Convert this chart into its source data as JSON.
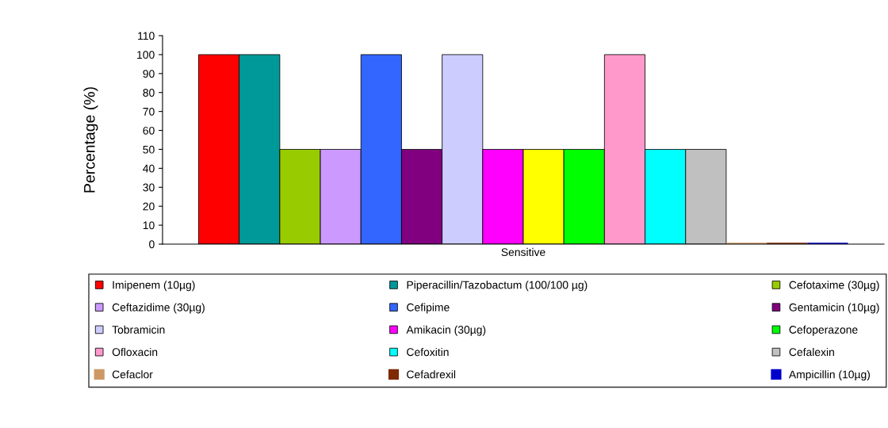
{
  "chart_data": {
    "type": "bar",
    "categories": [
      "Sensitive"
    ],
    "ylabel": "Percentage (%)",
    "ylim": [
      0,
      110
    ],
    "yticks": [
      0,
      10,
      20,
      30,
      40,
      50,
      60,
      70,
      80,
      90,
      100,
      110
    ],
    "grid": false,
    "legend": "bottom",
    "series": [
      {
        "name": "Imipenem (10µg)",
        "color": "#ff0000",
        "values": [
          100
        ]
      },
      {
        "name": "Piperacillin/Tazobactum (100/100 µg)",
        "color": "#009999",
        "values": [
          100
        ]
      },
      {
        "name": "Cefotaxime (30µg)",
        "color": "#99cc00",
        "values": [
          50
        ]
      },
      {
        "name": "Ceftazidime (30µg)",
        "color": "#cc99ff",
        "values": [
          50
        ]
      },
      {
        "name": "Cefipime",
        "color": "#3366ff",
        "values": [
          100
        ]
      },
      {
        "name": "Gentamicin (10µg)",
        "color": "#800080",
        "values": [
          50
        ]
      },
      {
        "name": "Tobramicin",
        "color": "#ccccff",
        "values": [
          100
        ]
      },
      {
        "name": "Amikacin (30µg)",
        "color": "#ff00ff",
        "values": [
          50
        ]
      },
      {
        "color": "#ffff00",
        "values": [
          50
        ]
      },
      {
        "name": "Cefoperazone",
        "color": "#00ff00",
        "values": [
          50
        ]
      },
      {
        "name": "Ofloxacin",
        "color": "#ff99cc",
        "values": [
          100
        ]
      },
      {
        "name": "Cefoxitin",
        "color": "#00ffff",
        "values": [
          50
        ]
      },
      {
        "name": "Cefalexin",
        "color": "#c0c0c0",
        "values": [
          50
        ]
      },
      {
        "name": "Cefaclor",
        "color": "#cc9966",
        "values": [
          0
        ]
      },
      {
        "name": "Cefadrexil",
        "color": "#7f2a00",
        "values": [
          0
        ]
      },
      {
        "name": "Ampicillin (10µg)",
        "color": "#0000cc",
        "values": [
          0
        ]
      }
    ]
  }
}
